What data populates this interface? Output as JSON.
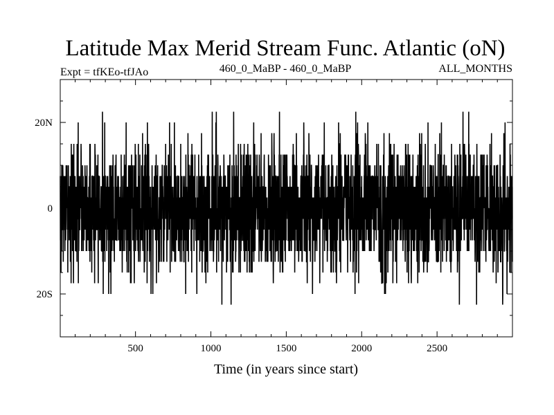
{
  "chart_data": {
    "type": "line",
    "title": "Latitude Max Merid Stream Func. Atlantic (oN)",
    "subtitle_left": "Expt = tfKEo-tfJAo",
    "subtitle_center": "460_0_MaBP - 460_0_MaBP",
    "subtitle_right": "ALL_MONTHS",
    "xlabel": "Time (in years since start)",
    "ylabel": "",
    "xlim": [
      1,
      3000
    ],
    "ylim": [
      -30,
      30
    ],
    "x_ticks": [
      500,
      1000,
      1500,
      2000,
      2500
    ],
    "y_ticks": [
      {
        "value": 20,
        "label": "20N"
      },
      {
        "value": 0,
        "label": "0"
      },
      {
        "value": -20,
        "label": "20S"
      }
    ],
    "grid": false,
    "series_description": "annual values, years 1-3000; noisy signal fluctuating mostly between 13S and 13N, extremes approx 22.5N and 22.5S; values quantized in ~2.5 degree steps",
    "value_levels": [
      -22.5,
      -20,
      -17.5,
      -15,
      -12.5,
      -10,
      -7.5,
      -5,
      -2.5,
      0,
      2.5,
      5,
      7.5,
      10,
      12.5,
      15,
      17.5,
      20,
      22.5
    ],
    "n_points": 3000,
    "color": "#000000"
  }
}
